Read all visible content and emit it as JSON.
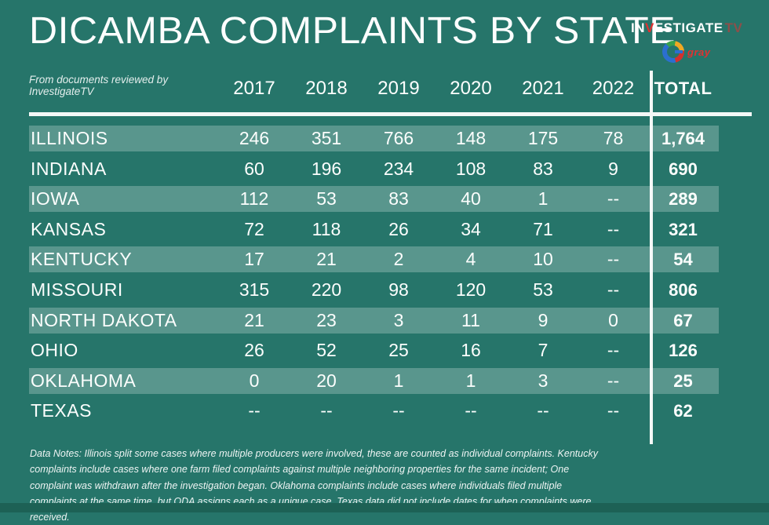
{
  "title": "DICAMBA COMPLAINTS BY STATE",
  "subtitle": "From documents reviewed by InvestigateTV",
  "logo": {
    "investigate_in": "IN",
    "investigate_v": "V",
    "investigate_rest": "ESTIGATE",
    "investigate_tv": "TV",
    "gray_label": "gray"
  },
  "colors": {
    "background": "#26756a",
    "row_stripe": "rgba(255,255,255,0.24)",
    "footer_bar": "#1d6155",
    "accent_red": "#e03131",
    "text": "#fcfefd"
  },
  "chart_data": {
    "type": "table",
    "title": "DICAMBA COMPLAINTS BY STATE",
    "source_note": "From documents reviewed by InvestigateTV",
    "columns": [
      "2017",
      "2018",
      "2019",
      "2020",
      "2021",
      "2022",
      "TOTAL"
    ],
    "rows": [
      {
        "state": "ILLINOIS",
        "values": [
          "246",
          "351",
          "766",
          "148",
          "175",
          "78"
        ],
        "total": "1,764"
      },
      {
        "state": "INDIANA",
        "values": [
          "60",
          "196",
          "234",
          "108",
          "83",
          "9"
        ],
        "total": "690"
      },
      {
        "state": "IOWA",
        "values": [
          "112",
          "53",
          "83",
          "40",
          "1",
          "--"
        ],
        "total": "289"
      },
      {
        "state": "KANSAS",
        "values": [
          "72",
          "118",
          "26",
          "34",
          "71",
          "--"
        ],
        "total": "321"
      },
      {
        "state": "KENTUCKY",
        "values": [
          "17",
          "21",
          "2",
          "4",
          "10",
          "--"
        ],
        "total": "54"
      },
      {
        "state": "MISSOURI",
        "values": [
          "315",
          "220",
          "98",
          "120",
          "53",
          "--"
        ],
        "total": "806"
      },
      {
        "state": "NORTH DAKOTA",
        "values": [
          "21",
          "23",
          "3",
          "11",
          "9",
          "0"
        ],
        "total": "67"
      },
      {
        "state": "OHIO",
        "values": [
          "26",
          "52",
          "25",
          "16",
          "7",
          "--"
        ],
        "total": "126"
      },
      {
        "state": "OKLAHOMA",
        "values": [
          "0",
          "20",
          "1",
          "1",
          "3",
          "--"
        ],
        "total": "25"
      },
      {
        "state": "TEXAS",
        "values": [
          "--",
          "--",
          "--",
          "--",
          "--",
          "--"
        ],
        "total": "62"
      }
    ],
    "notes": "Data Notes: Illinois split some cases where multiple producers were involved, these are counted as individual complaints. Kentucky complaints include cases where one farm filed complaints against multiple neighboring properties for the same incident; One complaint was withdrawn after the investigation began. Oklahoma complaints include cases where individuals filed multiple complaints at the same time, but ODA assigns each as a unique case. Texas data did not include dates for when complaints were received."
  }
}
